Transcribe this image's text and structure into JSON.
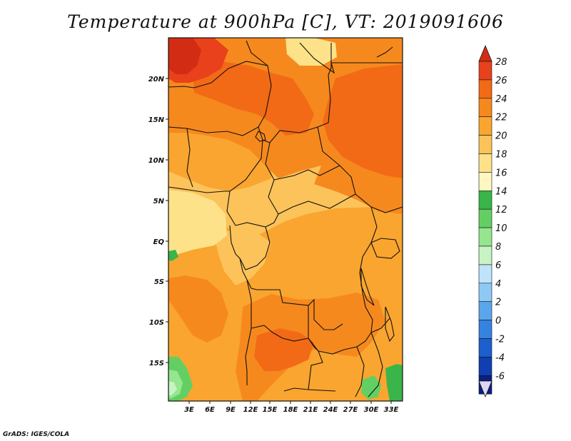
{
  "title": "Temperature at 900hPa [C], VT: 2019091606",
  "credit": "GrADS: IGES/COLA",
  "lat_labels": [
    "20N",
    "15N",
    "10N",
    "5N",
    "EQ",
    "5S",
    "10S",
    "15S"
  ],
  "lon_labels": [
    "3E",
    "6E",
    "9E",
    "12E",
    "15E",
    "18E",
    "21E",
    "24E",
    "27E",
    "30E",
    "33E"
  ],
  "colorbar": {
    "labels": [
      "28",
      "26",
      "24",
      "22",
      "20",
      "18",
      "16",
      "14",
      "12",
      "10",
      "8",
      "6",
      "4",
      "2",
      "0",
      "-2",
      "-4",
      "-6"
    ],
    "colors": [
      "#e8411b",
      "#f26a16",
      "#f6891e",
      "#f9a52f",
      "#fcc35a",
      "#fde289",
      "#fff6c0",
      "#39b54a",
      "#63cf63",
      "#96e58f",
      "#c8f3c2",
      "#bfe3fb",
      "#8ec9f5",
      "#5aa6ec",
      "#3682e0",
      "#1c5fcf",
      "#0f3fb0",
      "#0b1e80"
    ],
    "top_color": "#d22d14",
    "bottom_color": "#dcd8f2"
  },
  "map": {
    "lon_range": [
      0,
      34
    ],
    "lat_range": [
      -19,
      24
    ],
    "palette": {
      "c18": "#fde289",
      "c20": "#fcc35a",
      "c22": "#f9a52f",
      "c24": "#f6891e",
      "c26": "#f26a16",
      "c28": "#e8411b",
      "c30": "#d22d14",
      "c14": "#39b54a",
      "c12": "#63cf63",
      "c10": "#96e58f",
      "c8": "#c8f3c2"
    }
  }
}
